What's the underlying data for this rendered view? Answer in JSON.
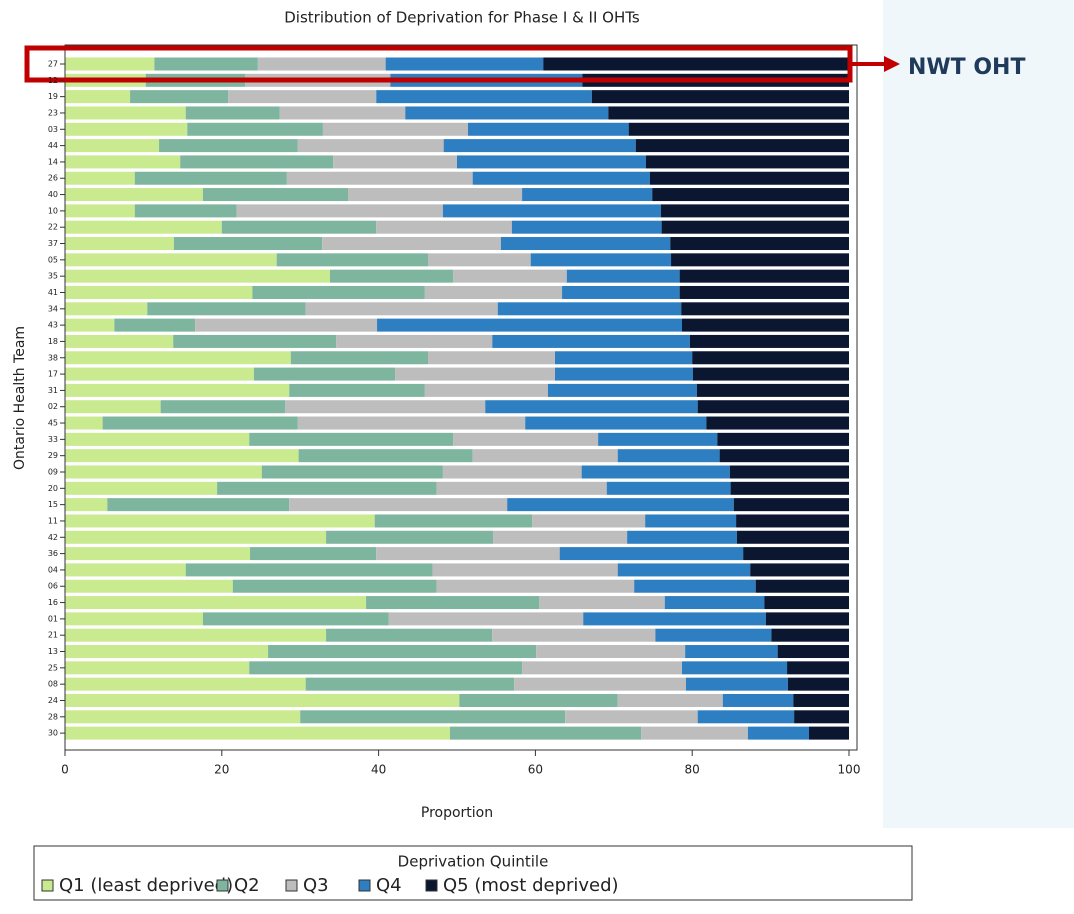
{
  "chart_data": {
    "type": "stacked_barh",
    "title": "Distribution of Deprivation for Phase I & II OHTs",
    "xlabel": "Proportion",
    "ylabel": "Ontario Health Team",
    "annotation": "NWT OHT",
    "legend_title": "Deprivation Quintile",
    "legend": "bottom",
    "xlim": [
      0,
      100
    ],
    "xticks": [
      0,
      20,
      40,
      60,
      80,
      100
    ],
    "categories": [
      "27",
      "12",
      "19",
      "23",
      "03",
      "44",
      "14",
      "26",
      "40",
      "10",
      "22",
      "37",
      "05",
      "35",
      "41",
      "34",
      "43",
      "18",
      "38",
      "17",
      "31",
      "02",
      "45",
      "33",
      "29",
      "09",
      "20",
      "15",
      "11",
      "42",
      "36",
      "04",
      "06",
      "16",
      "01",
      "21",
      "13",
      "25",
      "08",
      "24",
      "28",
      "30"
    ],
    "series": [
      {
        "name": "Q1 (least deprived)",
        "color": "#c9ea8e",
        "values": [
          11.4,
          10.3,
          8.3,
          15.4,
          15.6,
          12.0,
          14.7,
          8.9,
          17.6,
          8.9,
          20.0,
          13.9,
          27.0,
          33.8,
          23.9,
          10.5,
          6.3,
          13.8,
          28.8,
          24.1,
          28.6,
          12.2,
          4.8,
          23.5,
          29.8,
          25.1,
          19.4,
          5.4,
          39.5,
          33.3,
          23.6,
          15.4,
          21.4,
          38.4,
          17.6,
          33.3,
          25.9,
          23.5,
          30.7,
          50.3,
          30.0,
          49.1
        ]
      },
      {
        "name": "Q2",
        "color": "#7db59f",
        "values": [
          13.2,
          12.7,
          12.5,
          12.0,
          17.3,
          17.7,
          19.5,
          19.4,
          18.5,
          13.0,
          19.7,
          18.9,
          19.3,
          15.7,
          22.0,
          20.2,
          10.3,
          20.8,
          17.5,
          18.0,
          17.3,
          15.9,
          24.9,
          26.0,
          22.2,
          23.1,
          28.0,
          23.2,
          20.1,
          21.3,
          16.1,
          31.5,
          26.0,
          22.1,
          23.7,
          21.2,
          34.2,
          34.8,
          26.6,
          20.2,
          33.8,
          24.4
        ]
      },
      {
        "name": "Q3",
        "color": "#bdbdbd",
        "values": [
          16.3,
          18.5,
          18.9,
          16.0,
          18.5,
          18.6,
          15.8,
          23.7,
          22.2,
          26.3,
          17.3,
          22.8,
          13.1,
          14.5,
          17.5,
          24.5,
          23.2,
          19.9,
          16.2,
          20.4,
          15.7,
          25.5,
          29.0,
          18.5,
          18.5,
          17.7,
          21.7,
          27.8,
          14.4,
          17.1,
          23.4,
          23.6,
          25.2,
          16.0,
          24.8,
          20.8,
          19.0,
          20.4,
          21.9,
          13.4,
          16.9,
          13.6
        ]
      },
      {
        "name": "Q4",
        "color": "#2e7fc2",
        "values": [
          20.1,
          24.5,
          27.5,
          25.9,
          20.5,
          24.5,
          24.1,
          22.6,
          16.6,
          27.8,
          19.1,
          21.6,
          17.9,
          14.4,
          15.0,
          23.4,
          38.9,
          25.2,
          17.5,
          17.6,
          19.0,
          27.1,
          23.1,
          15.2,
          13.0,
          18.9,
          15.8,
          28.9,
          11.6,
          14.0,
          23.4,
          16.9,
          15.5,
          12.7,
          23.3,
          14.8,
          11.8,
          13.4,
          13.0,
          9.0,
          12.3,
          7.8
        ]
      },
      {
        "name": "Q5 (most deprived)",
        "color": "#0b1631",
        "values": [
          39.0,
          34.0,
          32.8,
          30.7,
          28.1,
          27.2,
          25.9,
          25.4,
          25.1,
          24.0,
          23.9,
          22.8,
          22.7,
          21.6,
          21.6,
          21.4,
          21.3,
          20.3,
          20.0,
          19.9,
          19.4,
          19.3,
          18.2,
          16.8,
          16.5,
          15.2,
          15.1,
          14.7,
          14.4,
          14.3,
          13.5,
          12.6,
          11.9,
          10.8,
          10.6,
          9.9,
          9.1,
          7.9,
          7.8,
          7.1,
          7.0,
          5.1
        ]
      }
    ]
  }
}
